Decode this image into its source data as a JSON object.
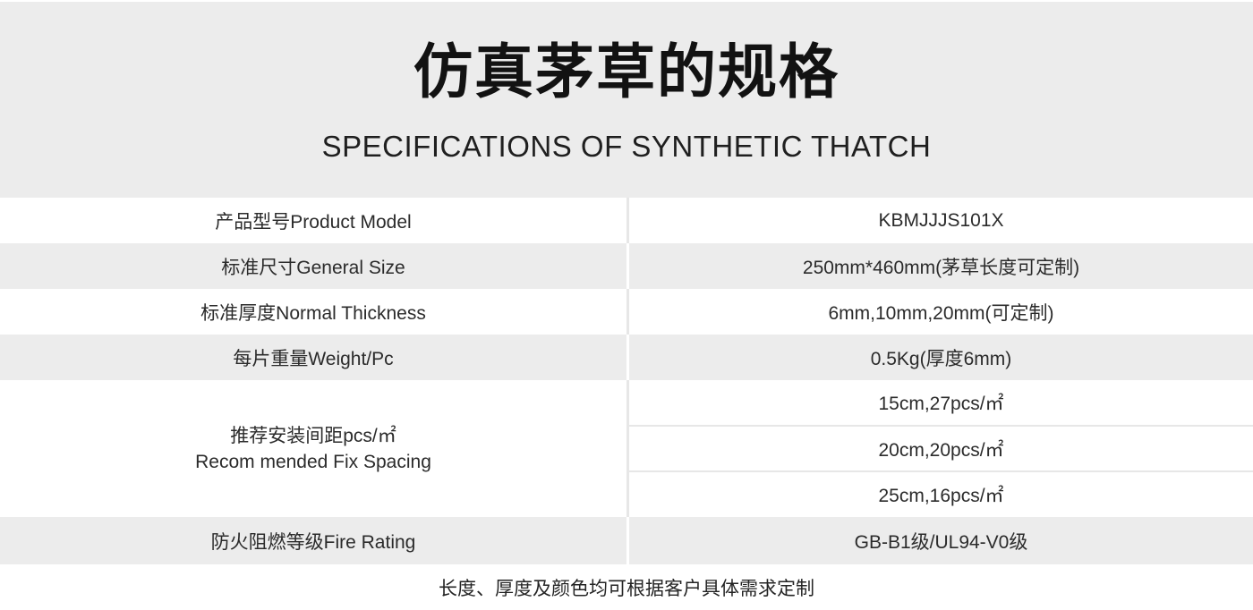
{
  "header": {
    "title": "仿真茅草的规格",
    "subtitle": "SPECIFICATIONS OF SYNTHETIC THATCH"
  },
  "table": {
    "rows": [
      {
        "label": "产品型号Product Model",
        "value": "KBMJJJS101X"
      },
      {
        "label": "标准尺寸General Size",
        "value": "250mm*460mm(茅草长度可定制)"
      },
      {
        "label": "标准厚度Normal Thickness",
        "value": "6mm,10mm,20mm(可定制)"
      },
      {
        "label": "每片重量Weight/Pc",
        "value": "0.5Kg(厚度6mm)"
      },
      {
        "label_line1": "推荐安装间距pcs/㎡",
        "label_line2": "Recom mended Fix Spacing",
        "values": [
          "15cm,27pcs/㎡",
          "20cm,20pcs/㎡",
          "25cm,16pcs/㎡"
        ]
      },
      {
        "label": "防火阻燃等级Fire Rating",
        "value": "GB-B1级/UL94-V0级"
      }
    ]
  },
  "footer": {
    "note": "长度、厚度及颜色均可根据客户具体需求定制"
  },
  "colors": {
    "band_gray": "#ececec",
    "divider_gray": "#e7e7e7",
    "title_text": "#121212",
    "body_text": "#2b2b2b"
  }
}
